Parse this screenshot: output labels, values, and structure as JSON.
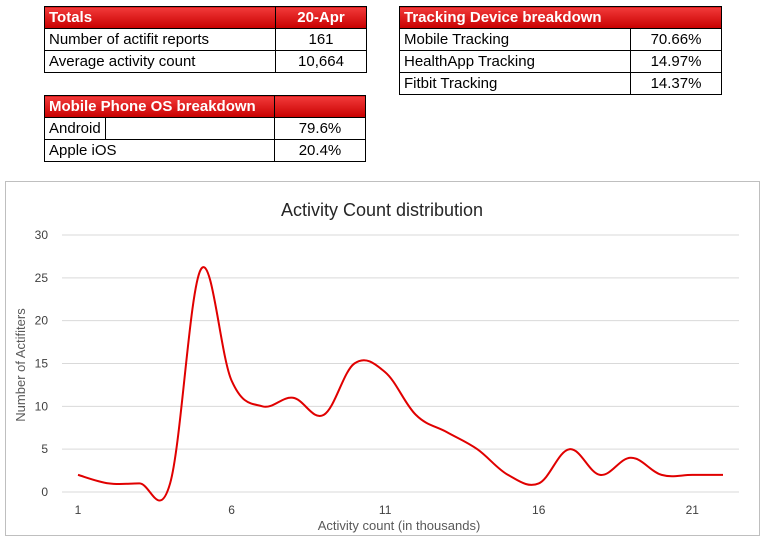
{
  "totals": {
    "header_label": "Totals",
    "header_date": "20-Apr",
    "rows": [
      {
        "label": "Number of actifit reports",
        "value": "161"
      },
      {
        "label": "Average activity count",
        "value": "10,664"
      }
    ]
  },
  "device": {
    "header": "Tracking Device breakdown",
    "rows": [
      {
        "label": "Mobile Tracking",
        "value": "70.66%"
      },
      {
        "label": "HealthApp Tracking",
        "value": "14.97%"
      },
      {
        "label": "Fitbit Tracking",
        "value": "14.37%"
      }
    ]
  },
  "os": {
    "header": "Mobile Phone OS breakdown",
    "rows": [
      {
        "label": "Android",
        "value": "79.6%"
      },
      {
        "label": "Apple iOS",
        "value": "20.4%"
      }
    ]
  },
  "colors": {
    "line": "#e00000",
    "grid": "#d9d9d9",
    "header_fill": "#e31b1b"
  },
  "chart_data": {
    "type": "line",
    "title": "Activity Count distribution",
    "xlabel": "Activity count (in thousands)",
    "ylabel": "Number of Actifiters",
    "xlim": [
      1,
      22
    ],
    "ylim": [
      0,
      30
    ],
    "xticks": [
      1,
      6,
      11,
      16,
      21
    ],
    "yticks": [
      0,
      5,
      10,
      15,
      20,
      25,
      30
    ],
    "grid": true,
    "smooth": true,
    "series": [
      {
        "values": [
          {
            "x": 1,
            "y": 2
          },
          {
            "x": 2,
            "y": 1
          },
          {
            "x": 3,
            "y": 1
          },
          {
            "x": 4,
            "y": 1
          },
          {
            "x": 5,
            "y": 26
          },
          {
            "x": 6,
            "y": 13
          },
          {
            "x": 7,
            "y": 10
          },
          {
            "x": 8,
            "y": 11
          },
          {
            "x": 9,
            "y": 9
          },
          {
            "x": 10,
            "y": 15
          },
          {
            "x": 11,
            "y": 14
          },
          {
            "x": 12,
            "y": 9
          },
          {
            "x": 13,
            "y": 7
          },
          {
            "x": 14,
            "y": 5
          },
          {
            "x": 15,
            "y": 2
          },
          {
            "x": 16,
            "y": 1
          },
          {
            "x": 17,
            "y": 5
          },
          {
            "x": 18,
            "y": 2
          },
          {
            "x": 19,
            "y": 4
          },
          {
            "x": 20,
            "y": 2
          },
          {
            "x": 21,
            "y": 2
          },
          {
            "x": 22,
            "y": 2
          }
        ]
      }
    ]
  }
}
